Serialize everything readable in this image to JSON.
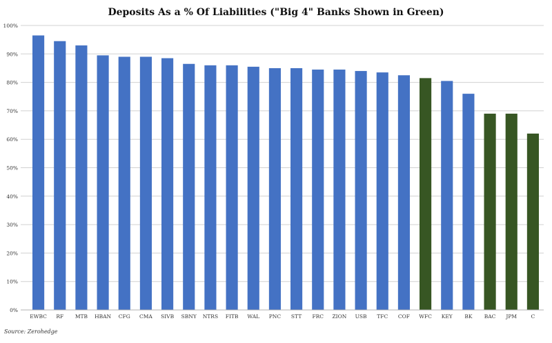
{
  "chart_data": {
    "type": "bar",
    "title": "Deposits As a % Of Liabilities (\"Big 4\" Banks Shown in Green)",
    "xlabel": "",
    "ylabel": "",
    "ylim": [
      0,
      100
    ],
    "yticks": [
      "0%",
      "10%",
      "20%",
      "30%",
      "40%",
      "50%",
      "60%",
      "70%",
      "80%",
      "90%",
      "100%"
    ],
    "grid": true,
    "categories": [
      "EWBC",
      "RF",
      "MTB",
      "HBAN",
      "CFG",
      "CMA",
      "SIVB",
      "SBNY",
      "NTRS",
      "FITB",
      "WAL",
      "PNC",
      "STT",
      "FRC",
      "ZION",
      "USB",
      "TFC",
      "COF",
      "WFC",
      "KEY",
      "BK",
      "BAC",
      "JPM",
      "C"
    ],
    "values": [
      96.5,
      94.5,
      93,
      89.5,
      89,
      89,
      88.5,
      86.5,
      86,
      86,
      85.5,
      85,
      85,
      84.5,
      84.5,
      84,
      83.5,
      82.5,
      81.5,
      80.5,
      76,
      69,
      69,
      62
    ],
    "colors": [
      "#4472c4",
      "#4472c4",
      "#4472c4",
      "#4472c4",
      "#4472c4",
      "#4472c4",
      "#4472c4",
      "#4472c4",
      "#4472c4",
      "#4472c4",
      "#4472c4",
      "#4472c4",
      "#4472c4",
      "#4472c4",
      "#4472c4",
      "#4472c4",
      "#4472c4",
      "#4472c4",
      "#375623",
      "#4472c4",
      "#4472c4",
      "#375623",
      "#375623",
      "#375623"
    ],
    "source": "Source: Zerohedge"
  }
}
